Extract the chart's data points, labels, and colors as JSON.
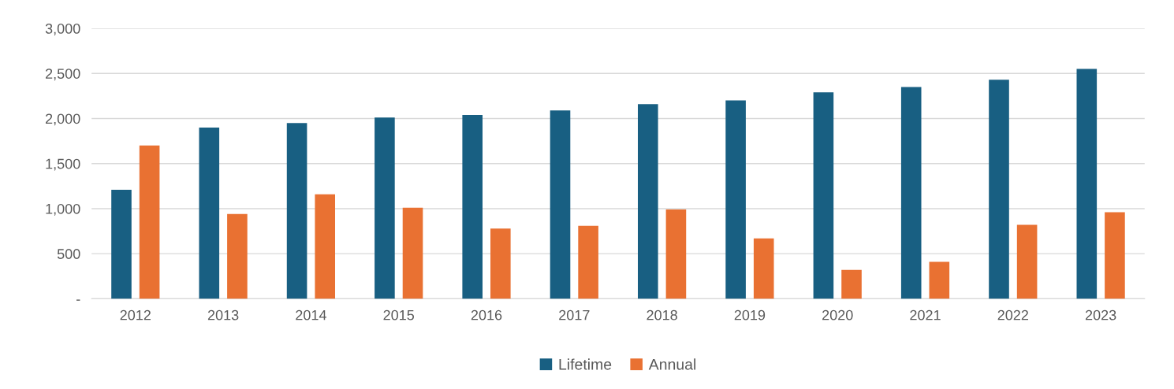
{
  "chart_data": {
    "type": "bar",
    "categories": [
      "2012",
      "2013",
      "2014",
      "2015",
      "2016",
      "2017",
      "2018",
      "2019",
      "2020",
      "2021",
      "2022",
      "2023"
    ],
    "series": [
      {
        "name": "Lifetime",
        "color": "#185f82",
        "values": [
          1210,
          1900,
          1950,
          2010,
          2040,
          2090,
          2160,
          2200,
          2290,
          2350,
          2430,
          2550
        ]
      },
      {
        "name": "Annual",
        "color": "#e97132",
        "values": [
          1700,
          940,
          1160,
          1010,
          780,
          810,
          990,
          670,
          320,
          410,
          820,
          960
        ]
      }
    ],
    "ylim": [
      0,
      3000
    ],
    "yticks": [
      {
        "value": 0,
        "label": "-"
      },
      {
        "value": 500,
        "label": "500"
      },
      {
        "value": 1000,
        "label": "1,000"
      },
      {
        "value": 1500,
        "label": "1,500"
      },
      {
        "value": 2000,
        "label": "2,000"
      },
      {
        "value": 2500,
        "label": "2,500"
      },
      {
        "value": 3000,
        "label": "3,000"
      }
    ],
    "grid": "y",
    "legend": "bottom"
  }
}
